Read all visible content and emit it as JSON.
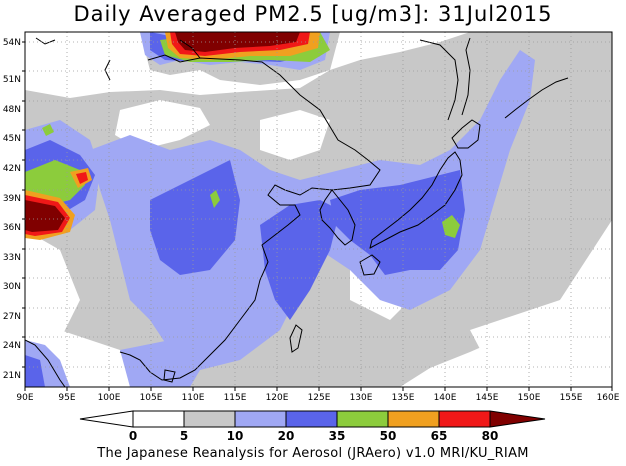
{
  "title": "Daily Averaged PM2.5 [ug/m3]: 31Jul2015",
  "footer": "The Japanese Reanalysis for Aerosol (JRAero) v1.0 MRI/KU_RIAM",
  "map": {
    "lon_range": [
      90,
      160
    ],
    "lat_range": [
      19.5,
      55.5
    ],
    "x_ticks": [
      "90E",
      "95E",
      "100E",
      "105E",
      "110E",
      "115E",
      "120E",
      "125E",
      "130E",
      "135E",
      "140E",
      "145E",
      "150E",
      "155E",
      "160E"
    ],
    "y_ticks": [
      "21N",
      "24N",
      "27N",
      "30N",
      "33N",
      "36N",
      "39N",
      "42N",
      "45N",
      "48N",
      "51N",
      "54N"
    ],
    "grid": "dotted"
  },
  "colorbar": {
    "labels": [
      "0",
      "5",
      "10",
      "20",
      "35",
      "50",
      "65",
      "80"
    ],
    "colors": [
      "#ffffff",
      "#ffffff",
      "#c8c8c8",
      "#a0a8f4",
      "#5a64ea",
      "#8ccc3c",
      "#f0a020",
      "#f01818",
      "#800000"
    ]
  }
}
